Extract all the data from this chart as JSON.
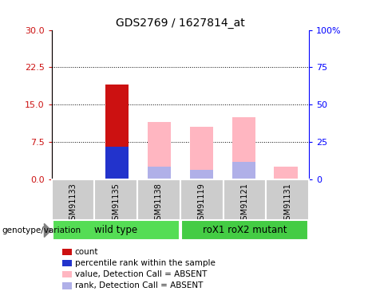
{
  "title": "GDS2769 / 1627814_at",
  "samples": [
    "GSM91133",
    "GSM91135",
    "GSM91138",
    "GSM91119",
    "GSM91121",
    "GSM91131"
  ],
  "wild_type_label": "wild type",
  "mutant_label": "roX1 roX2 mutant",
  "genotype_label": "genotype/variation",
  "left_yticks": [
    0,
    7.5,
    15,
    22.5,
    30
  ],
  "left_ylim": [
    0,
    30
  ],
  "right_yticks": [
    0,
    25,
    50,
    75,
    100
  ],
  "right_ylim": [
    0,
    100
  ],
  "right_yticklabels": [
    "0",
    "25",
    "50",
    "75",
    "100%"
  ],
  "count_color": "#cc1111",
  "rank_color": "#2233cc",
  "value_absent_color": "#ffb6c1",
  "rank_absent_color": "#b0b0e8",
  "sample_bg_color": "#cccccc",
  "wt_bg_color": "#55dd55",
  "mut_bg_color": "#44cc44",
  "count_values": [
    0,
    19,
    0,
    0,
    0,
    0
  ],
  "rank_values": [
    0,
    6.5,
    0,
    0,
    0,
    0
  ],
  "value_absent": [
    0,
    0,
    11.5,
    10.5,
    12.5,
    2.5
  ],
  "rank_absent": [
    0,
    0,
    2.5,
    2.0,
    3.5,
    0
  ],
  "legend_items": [
    {
      "label": "count",
      "color": "#cc1111"
    },
    {
      "label": "percentile rank within the sample",
      "color": "#2233cc"
    },
    {
      "label": "value, Detection Call = ABSENT",
      "color": "#ffb6c1"
    },
    {
      "label": "rank, Detection Call = ABSENT",
      "color": "#b0b0e8"
    }
  ]
}
